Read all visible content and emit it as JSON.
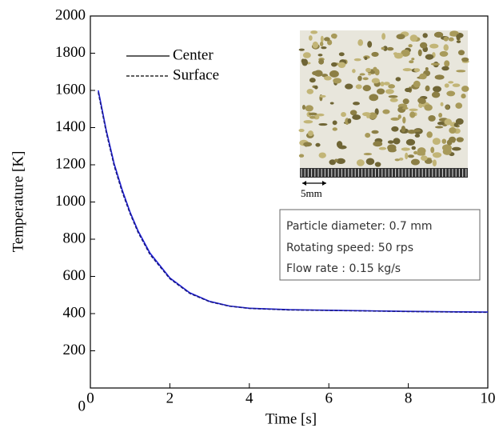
{
  "chart_data": {
    "type": "line",
    "xlabel": "Time [s]",
    "ylabel": "Temperature [K]",
    "x": [
      0.2,
      0.4,
      0.6,
      0.8,
      1.0,
      1.2,
      1.5,
      2.0,
      2.5,
      3.0,
      3.5,
      4.0,
      5.0,
      6.0,
      7.0,
      8.0,
      9.0,
      10.0
    ],
    "series": [
      {
        "name": "Center",
        "color": "#2020e0",
        "dash": false,
        "values": [
          1600,
          1385,
          1205,
          1065,
          945,
          845,
          725,
          592,
          512,
          466,
          441,
          429,
          421,
          418,
          415,
          412,
          410,
          408
        ]
      },
      {
        "name": "Surface",
        "color": "#1a1a80",
        "dash": true,
        "values": [
          1590,
          1375,
          1195,
          1055,
          938,
          838,
          718,
          588,
          509,
          464,
          440,
          428,
          420,
          417,
          414,
          411,
          409,
          407
        ]
      }
    ],
    "xlim": [
      0,
      10
    ],
    "xticks": [
      0,
      2,
      4,
      6,
      8,
      10
    ],
    "ylim": [
      0,
      2000
    ],
    "yticks": [
      0,
      200,
      400,
      600,
      800,
      1000,
      1200,
      1400,
      1600,
      1800,
      2000
    ],
    "inset": {
      "scale_label": "5mm",
      "notes": [
        "Particle diameter: 0.7 mm",
        "Rotating speed: 50 rps",
        "Flow rate : 0.15 kg/s"
      ]
    }
  }
}
